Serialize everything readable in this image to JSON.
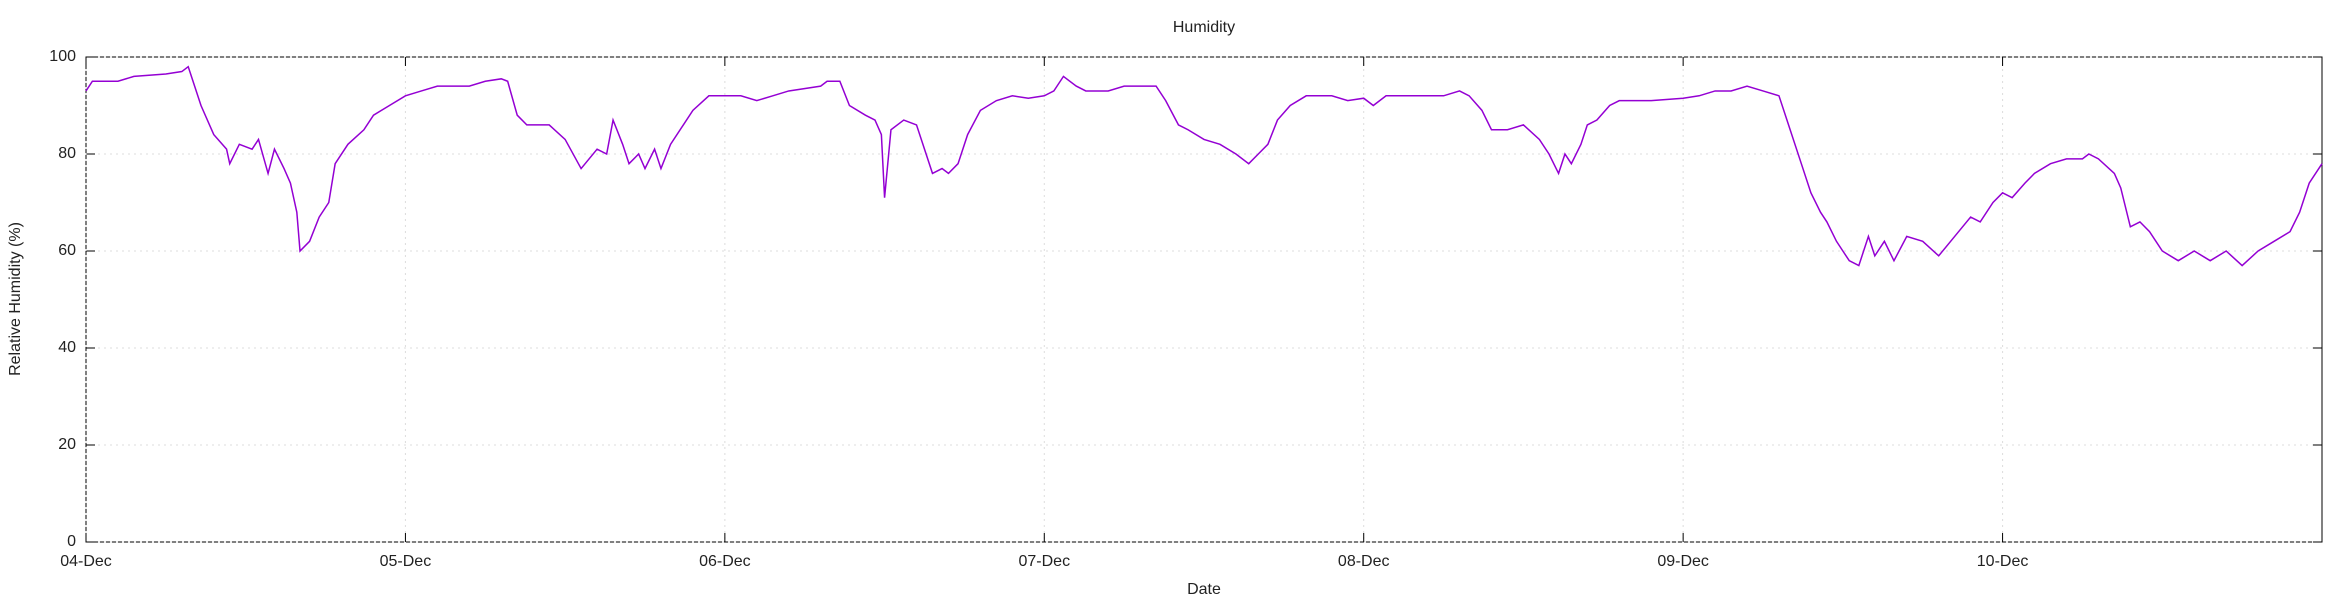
{
  "chart_data": {
    "type": "line",
    "title": "Humidity",
    "x_label": "Date",
    "y_label": "Relative Humidity (%)",
    "color": "#9400d3",
    "grid": true,
    "xlim": [
      0,
      7
    ],
    "ylim": [
      0,
      100
    ],
    "xticks": [
      {
        "value": 0,
        "label": "04-Dec"
      },
      {
        "value": 1,
        "label": "05-Dec"
      },
      {
        "value": 2,
        "label": "06-Dec"
      },
      {
        "value": 3,
        "label": "07-Dec"
      },
      {
        "value": 4,
        "label": "08-Dec"
      },
      {
        "value": 5,
        "label": "09-Dec"
      },
      {
        "value": 6,
        "label": "10-Dec"
      }
    ],
    "yticks": [
      0,
      20,
      40,
      60,
      80,
      100
    ],
    "x": [
      0,
      0.02,
      0.1,
      0.15,
      0.25,
      0.3,
      0.32,
      0.33,
      0.36,
      0.4,
      0.44,
      0.45,
      0.48,
      0.52,
      0.54,
      0.57,
      0.59,
      0.62,
      0.64,
      0.66,
      0.67,
      0.7,
      0.73,
      0.76,
      0.78,
      0.82,
      0.87,
      0.9,
      0.95,
      1,
      1.05,
      1.1,
      1.2,
      1.25,
      1.3,
      1.32,
      1.35,
      1.38,
      1.45,
      1.5,
      1.55,
      1.6,
      1.63,
      1.65,
      1.68,
      1.7,
      1.73,
      1.75,
      1.78,
      1.8,
      1.83,
      1.87,
      1.9,
      1.95,
      2,
      2.05,
      2.1,
      2.15,
      2.2,
      2.3,
      2.32,
      2.36,
      2.39,
      2.44,
      2.47,
      2.49,
      2.5,
      2.52,
      2.56,
      2.6,
      2.63,
      2.65,
      2.68,
      2.7,
      2.73,
      2.76,
      2.8,
      2.85,
      2.9,
      2.95,
      3,
      3.03,
      3.06,
      3.1,
      3.13,
      3.2,
      3.25,
      3.35,
      3.38,
      3.42,
      3.45,
      3.5,
      3.55,
      3.6,
      3.64,
      3.67,
      3.7,
      3.73,
      3.77,
      3.82,
      3.9,
      3.95,
      4,
      4.03,
      4.07,
      4.15,
      4.25,
      4.3,
      4.33,
      4.37,
      4.4,
      4.45,
      4.5,
      4.55,
      4.58,
      4.61,
      4.63,
      4.65,
      4.68,
      4.7,
      4.73,
      4.77,
      4.8,
      4.9,
      5,
      5.05,
      5.1,
      5.15,
      5.2,
      5.25,
      5.3,
      5.33,
      5.37,
      5.4,
      5.43,
      5.45,
      5.48,
      5.5,
      5.52,
      5.55,
      5.58,
      5.6,
      5.63,
      5.66,
      5.7,
      5.75,
      5.8,
      5.85,
      5.9,
      5.93,
      5.97,
      6,
      6.03,
      6.07,
      6.1,
      6.15,
      6.2,
      6.25,
      6.27,
      6.3,
      6.35,
      6.37,
      6.4,
      6.43,
      6.46,
      6.5,
      6.55,
      6.6,
      6.65,
      6.7,
      6.75,
      6.8,
      6.85,
      6.9,
      6.93,
      6.96,
      7
    ],
    "values": [
      93,
      95,
      95,
      96,
      96.5,
      97,
      98,
      96,
      90,
      84,
      81,
      78,
      82,
      81,
      83,
      76,
      81,
      77,
      74,
      68,
      60,
      62,
      67,
      70,
      78,
      82,
      85,
      88,
      90,
      92,
      93,
      94,
      94,
      95,
      95.5,
      95,
      88,
      86,
      86,
      83,
      77,
      81,
      80,
      87,
      82,
      78,
      80,
      77,
      81,
      77,
      82,
      86,
      89,
      92,
      92,
      92,
      91,
      92,
      93,
      94,
      95,
      95,
      90,
      88,
      87,
      84,
      71,
      85,
      87,
      86,
      80,
      76,
      77,
      76,
      78,
      84,
      89,
      91,
      92,
      91.5,
      92,
      93,
      96,
      94,
      93,
      93,
      94,
      94,
      91,
      86,
      85,
      83,
      82,
      80,
      78,
      80,
      82,
      87,
      90,
      92,
      92,
      91,
      91.5,
      90,
      92,
      92,
      92,
      93,
      92,
      89,
      85,
      85,
      86,
      83,
      80,
      76,
      80,
      78,
      82,
      86,
      87,
      90,
      91,
      91,
      91.5,
      92,
      93,
      93,
      94,
      93,
      92,
      86,
      78,
      72,
      68,
      66,
      62,
      60,
      58,
      57,
      63,
      59,
      62,
      58,
      63,
      62,
      59,
      63,
      67,
      66,
      70,
      72,
      71,
      74,
      76,
      78,
      79,
      79,
      80,
      79,
      76,
      73,
      65,
      66,
      64,
      60,
      58,
      60,
      58,
      60,
      57,
      60,
      62,
      64,
      68,
      74,
      78
    ]
  }
}
